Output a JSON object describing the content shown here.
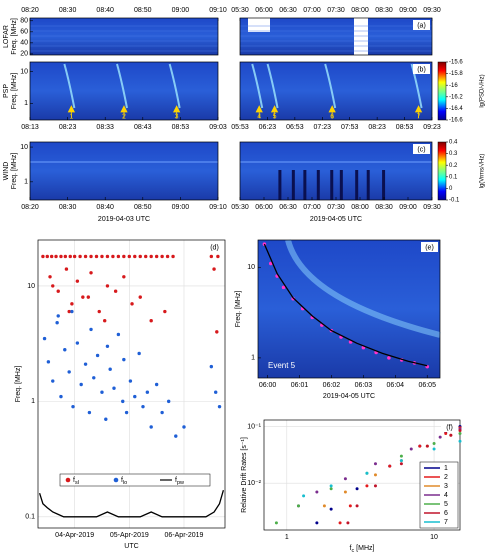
{
  "chart_data": [
    {
      "type": "spectrogram",
      "top_xticks_left": [
        "08:20",
        "08:30",
        "08:40",
        "08:50",
        "09:00",
        "09:10"
      ],
      "top_xticks_right": [
        "05:30",
        "06:00",
        "06:30",
        "07:00",
        "07:30",
        "08:00",
        "08:30",
        "09:00",
        "09:30"
      ],
      "xlabel_left": "2019-04-03 UTC",
      "xlabel_right": "2019-04-05 UTC",
      "panels": [
        {
          "label": "(a)",
          "instrument": "LOFAR",
          "ylabel": "Freq. [MHz]",
          "ylim": [
            18,
            85
          ],
          "yticks": [
            20,
            40,
            60,
            80
          ]
        },
        {
          "label": "(b)",
          "instrument": "PSP",
          "ylabel": "Freq. [MHz]",
          "ylim": [
            0.3,
            20
          ],
          "log": true,
          "yticks": [
            1,
            10
          ],
          "events": [
            "1",
            "2",
            "3",
            "4",
            "5",
            "6",
            "7"
          ],
          "xticks_left": [
            "08:13",
            "08:23",
            "08:33",
            "08:43",
            "08:53",
            "09:03"
          ],
          "xticks_right": [
            "05:53",
            "06:23",
            "06:53",
            "07:23",
            "07:53",
            "08:23",
            "08:53",
            "09:23"
          ],
          "colorbar": {
            "label": "lg(PSD/√Hz)",
            "lim": [
              -16.6,
              -15.6
            ],
            "ticks": [
              -15.6,
              -15.8,
              -16,
              -16.2,
              -16.4,
              -16.6
            ]
          }
        },
        {
          "label": "(c)",
          "instrument": "WIND",
          "ylabel": "Freq. [MHz]",
          "ylim": [
            0.3,
            14
          ],
          "log": true,
          "yticks": [
            1,
            10
          ],
          "xticks_left": [
            "08:20",
            "08:30",
            "08:40",
            "08:50",
            "09:00",
            "09:10"
          ],
          "xticks_right": [
            "05:30",
            "06:00",
            "06:30",
            "07:00",
            "07:30",
            "08:00",
            "08:30",
            "09:00",
            "09:30"
          ],
          "colorbar": {
            "label": "lg(Vrms/√Hz)",
            "lim": [
              -0.1,
              0.4
            ],
            "ticks": [
              0.4,
              0.3,
              0.2,
              0.1,
              0,
              -0.1
            ]
          }
        }
      ]
    },
    {
      "type": "scatter",
      "label": "(d)",
      "xlabel": "UTC",
      "ylabel": "Freq. [MHz]",
      "grid": true,
      "xlim": [
        3.33,
        6.75
      ],
      "xticks": [
        {
          "value": 4,
          "label": "04-Apr-2019"
        },
        {
          "value": 5,
          "label": "05-Apr-2019"
        },
        {
          "value": 6,
          "label": "06-Apr-2019"
        }
      ],
      "ylim": [
        0.08,
        25
      ],
      "ylog": true,
      "yticks": [
        0.1,
        1,
        10
      ],
      "series": [
        {
          "name": "fsl",
          "color": "#d7191c",
          "x": [
            3.42,
            3.5,
            3.58,
            3.66,
            3.75,
            3.83,
            3.92,
            4.0,
            4.1,
            4.2,
            4.3,
            4.4,
            4.5,
            4.6,
            4.7,
            4.8,
            4.9,
            5.0,
            5.1,
            5.2,
            5.3,
            5.4,
            5.5,
            5.6,
            5.7,
            5.8,
            6.5,
            6.62,
            3.55,
            3.7,
            3.85,
            3.95,
            4.05,
            4.15,
            4.3,
            4.45,
            4.6,
            4.75,
            4.9,
            5.05,
            5.2,
            5.4,
            5.65,
            6.55,
            6.6,
            3.6,
            3.9,
            4.25,
            4.55
          ],
          "values": [
            18,
            18,
            18,
            18,
            18,
            18,
            18,
            18,
            18,
            18,
            18,
            18,
            18,
            18,
            18,
            18,
            18,
            18,
            18,
            18,
            18,
            18,
            18,
            18,
            18,
            18,
            18,
            18,
            12,
            9,
            14,
            7,
            11,
            8,
            13,
            6,
            10,
            9,
            12,
            7,
            8,
            5,
            6,
            14,
            4,
            10,
            6,
            8,
            5
          ]
        },
        {
          "name": "flo",
          "color": "#1f5fd6",
          "x": [
            3.45,
            3.52,
            3.6,
            3.68,
            3.75,
            3.82,
            3.9,
            3.97,
            4.05,
            4.12,
            4.2,
            4.27,
            4.35,
            4.42,
            4.5,
            4.57,
            4.65,
            4.72,
            4.8,
            4.88,
            4.95,
            5.02,
            5.1,
            5.18,
            5.25,
            5.33,
            5.4,
            5.5,
            5.6,
            5.72,
            5.85,
            6.0,
            6.5,
            6.58,
            6.65,
            3.7,
            3.95,
            4.3,
            4.6,
            4.9
          ],
          "values": [
            3.5,
            2.2,
            1.5,
            4.8,
            1.1,
            2.8,
            1.8,
            0.9,
            3.2,
            1.4,
            2.1,
            0.8,
            1.6,
            2.5,
            1.2,
            0.7,
            1.9,
            1.3,
            3.8,
            1.0,
            0.8,
            1.5,
            1.1,
            2.6,
            0.9,
            1.2,
            0.6,
            1.4,
            0.8,
            1.0,
            0.5,
            0.6,
            2.0,
            1.2,
            0.9,
            5.5,
            6.0,
            4.2,
            3.0,
            2.3
          ]
        },
        {
          "name": "fpw",
          "color": "#000000",
          "style": "line",
          "x": [
            3.36,
            3.42,
            3.5,
            3.6,
            3.7,
            3.8,
            4.0,
            4.2,
            4.4,
            4.6,
            4.8,
            5.0,
            5.2,
            5.4,
            5.6,
            5.8,
            6.0,
            6.2,
            6.4,
            6.55,
            6.65,
            6.72
          ],
          "values": [
            0.16,
            0.13,
            0.12,
            0.11,
            0.105,
            0.1,
            0.1,
            0.1,
            0.1,
            0.11,
            0.1,
            0.1,
            0.1,
            0.11,
            0.1,
            0.1,
            0.1,
            0.1,
            0.1,
            0.11,
            0.13,
            0.17
          ]
        }
      ]
    },
    {
      "type": "spectrogram_fit",
      "label": "(e)",
      "annotation": "Event 5",
      "xlabel": "2019-04-05 UTC",
      "ylabel": "Freq. [MHz]",
      "xlim": [
        -0.3,
        5.4
      ],
      "xticks": [
        {
          "value": 0,
          "label": "06:00"
        },
        {
          "value": 1,
          "label": "06:01"
        },
        {
          "value": 2,
          "label": "06:02"
        },
        {
          "value": 3,
          "label": "06:03"
        },
        {
          "value": 4,
          "label": "06:04"
        },
        {
          "value": 5,
          "label": "06:05"
        }
      ],
      "ylim": [
        0.6,
        20
      ],
      "ylog": true,
      "yticks": [
        1,
        10
      ],
      "series": [
        {
          "color": "#ff33cc",
          "x": [
            -0.1,
            0.1,
            0.3,
            0.5,
            0.8,
            1.1,
            1.4,
            1.7,
            2.0,
            2.3,
            2.6,
            3.0,
            3.4,
            3.8,
            4.2,
            4.6,
            5.0
          ],
          "values": [
            18,
            11,
            8,
            6,
            4.5,
            3.5,
            2.8,
            2.3,
            2.0,
            1.7,
            1.5,
            1.3,
            1.15,
            1.0,
            0.95,
            0.88,
            0.8
          ]
        },
        {
          "color": "#000000",
          "style": "line",
          "x": [
            -0.1,
            0.3,
            0.8,
            1.4,
            2.0,
            2.8,
            3.6,
            4.4,
            5.0
          ],
          "values": [
            18,
            8.5,
            4.6,
            2.9,
            2.0,
            1.45,
            1.12,
            0.92,
            0.82
          ]
        }
      ]
    },
    {
      "type": "line",
      "label": "(f)",
      "xlabel": "fc [MHz]",
      "ylabel": "Relative Drift Rates [s⁻¹]",
      "grid": true,
      "xlim": [
        0.7,
        15
      ],
      "xlog": true,
      "xticks": [
        1,
        10
      ],
      "ylim": [
        0.0015,
        0.13
      ],
      "ylog": true,
      "yticks": [
        {
          "value": 0.01,
          "label": "10⁻²"
        },
        {
          "value": 0.1,
          "label": "10⁻¹"
        }
      ],
      "series": [
        {
          "name": "1",
          "color": "#00008b",
          "x": [
            1.6,
            2,
            3,
            5,
            8,
            12,
            15
          ],
          "values": [
            0.002,
            0.0035,
            0.008,
            0.02,
            0.045,
            0.08,
            0.1
          ]
        },
        {
          "name": "2",
          "color": "#e41a1c",
          "x": [
            2.3,
            2.7,
            3.5,
            5,
            8,
            12,
            15
          ],
          "values": [
            0.002,
            0.004,
            0.009,
            0.02,
            0.045,
            0.075,
            0.095
          ]
        },
        {
          "name": "3",
          "color": "#e08a2a",
          "x": [
            1.8,
            2.5,
            4,
            6,
            9,
            13,
            15
          ],
          "values": [
            0.004,
            0.007,
            0.014,
            0.025,
            0.045,
            0.07,
            0.085
          ]
        },
        {
          "name": "4",
          "color": "#7b2d8e",
          "x": [
            1.2,
            1.6,
            2.5,
            4,
            7,
            11,
            15
          ],
          "values": [
            0.004,
            0.007,
            0.012,
            0.022,
            0.04,
            0.065,
            0.09
          ]
        },
        {
          "name": "5",
          "color": "#4daf4a",
          "x": [
            0.85,
            1.2,
            2,
            3.5,
            6,
            10,
            15
          ],
          "values": [
            0.002,
            0.004,
            0.008,
            0.015,
            0.03,
            0.05,
            0.075
          ]
        },
        {
          "name": "6",
          "color": "#c0142a",
          "x": [
            2.6,
            3,
            4,
            6,
            9,
            13,
            15
          ],
          "values": [
            0.002,
            0.004,
            0.009,
            0.022,
            0.045,
            0.07,
            0.085
          ]
        },
        {
          "name": "7",
          "color": "#17becf",
          "x": [
            1.3,
            2,
            3.5,
            6,
            10,
            15
          ],
          "values": [
            0.006,
            0.009,
            0.015,
            0.025,
            0.04,
            0.055
          ]
        }
      ]
    }
  ]
}
